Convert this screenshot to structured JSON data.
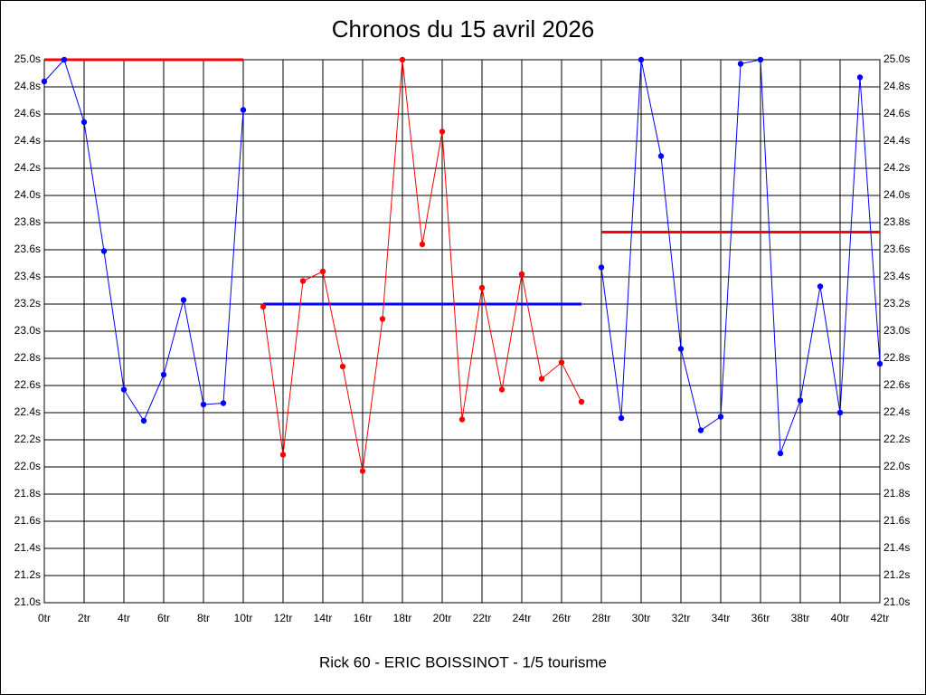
{
  "chart_data": {
    "type": "line",
    "title": "Chronos du 15 avril 2026",
    "subtitle": "Rick 60 - ERIC BOISSINOT - 1/5 tourisme",
    "xlim": [
      0,
      42
    ],
    "ylim": [
      21.0,
      25.0
    ],
    "grid": true,
    "xticks": [
      {
        "value": 0,
        "label": "0tr"
      },
      {
        "value": 2,
        "label": "2tr"
      },
      {
        "value": 4,
        "label": "4tr"
      },
      {
        "value": 6,
        "label": "6tr"
      },
      {
        "value": 8,
        "label": "8tr"
      },
      {
        "value": 10,
        "label": "10tr"
      },
      {
        "value": 12,
        "label": "12tr"
      },
      {
        "value": 14,
        "label": "14tr"
      },
      {
        "value": 16,
        "label": "16tr"
      },
      {
        "value": 18,
        "label": "18tr"
      },
      {
        "value": 20,
        "label": "20tr"
      },
      {
        "value": 22,
        "label": "22tr"
      },
      {
        "value": 24,
        "label": "24tr"
      },
      {
        "value": 26,
        "label": "26tr"
      },
      {
        "value": 28,
        "label": "28tr"
      },
      {
        "value": 30,
        "label": "30tr"
      },
      {
        "value": 32,
        "label": "32tr"
      },
      {
        "value": 34,
        "label": "34tr"
      },
      {
        "value": 36,
        "label": "36tr"
      },
      {
        "value": 38,
        "label": "38tr"
      },
      {
        "value": 40,
        "label": "40tr"
      },
      {
        "value": 42,
        "label": "42tr"
      }
    ],
    "yticks": [
      {
        "value": 21.0,
        "label": "21.0s"
      },
      {
        "value": 21.2,
        "label": "21.2s"
      },
      {
        "value": 21.4,
        "label": "21.4s"
      },
      {
        "value": 21.6,
        "label": "21.6s"
      },
      {
        "value": 21.8,
        "label": "21.8s"
      },
      {
        "value": 22.0,
        "label": "22.0s"
      },
      {
        "value": 22.2,
        "label": "22.2s"
      },
      {
        "value": 22.4,
        "label": "22.4s"
      },
      {
        "value": 22.6,
        "label": "22.6s"
      },
      {
        "value": 22.8,
        "label": "22.8s"
      },
      {
        "value": 23.0,
        "label": "23.0s"
      },
      {
        "value": 23.2,
        "label": "23.2s"
      },
      {
        "value": 23.4,
        "label": "23.4s"
      },
      {
        "value": 23.6,
        "label": "23.6s"
      },
      {
        "value": 23.8,
        "label": "23.8s"
      },
      {
        "value": 24.0,
        "label": "24.0s"
      },
      {
        "value": 24.2,
        "label": "24.2s"
      },
      {
        "value": 24.4,
        "label": "24.4s"
      },
      {
        "value": 24.6,
        "label": "24.6s"
      },
      {
        "value": 24.8,
        "label": "24.8s"
      },
      {
        "value": 25.0,
        "label": "25.0s"
      }
    ],
    "series": [
      {
        "color": "#0000ff",
        "x": [
          0,
          1,
          2,
          3,
          4,
          5,
          6,
          7,
          8,
          9,
          10
        ],
        "values": [
          24.84,
          25.0,
          24.54,
          23.59,
          22.57,
          22.34,
          22.68,
          23.23,
          22.46,
          22.47,
          24.63
        ]
      },
      {
        "color": "#ff0000",
        "x": [
          11,
          12,
          13,
          14,
          15,
          16,
          17,
          18,
          19,
          20,
          21,
          22,
          23,
          24,
          25,
          26,
          27
        ],
        "values": [
          23.18,
          22.09,
          23.37,
          23.44,
          22.74,
          21.97,
          23.09,
          25.0,
          23.64,
          24.47,
          22.35,
          23.32,
          22.57,
          23.42,
          22.65,
          22.77,
          22.48
        ]
      },
      {
        "color": "#0000ff",
        "x": [
          28,
          29,
          30,
          31,
          32,
          33,
          34,
          35,
          36,
          37,
          38,
          39,
          40,
          41,
          42
        ],
        "values": [
          23.47,
          22.36,
          25.0,
          24.29,
          22.87,
          22.27,
          22.37,
          24.97,
          25.0,
          22.1,
          22.49,
          23.33,
          22.4,
          24.87,
          22.76
        ]
      }
    ],
    "reference_lines": [
      {
        "value": 25.0,
        "x": [
          0,
          10
        ],
        "color": "#ff0000"
      },
      {
        "value": 23.2,
        "x": [
          11,
          27
        ],
        "color": "#0000ff"
      },
      {
        "value": 23.73,
        "x": [
          28,
          42
        ],
        "color": "#ff0000"
      }
    ]
  }
}
